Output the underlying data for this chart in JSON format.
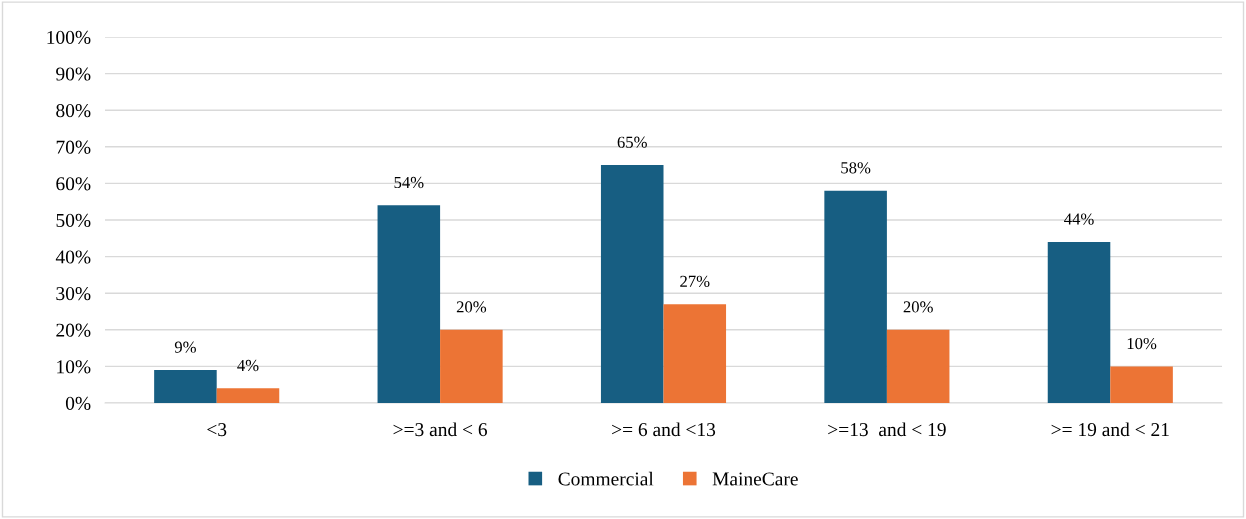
{
  "chart_data": {
    "type": "bar",
    "categories": [
      "<3",
      ">=3 and < 6",
      ">= 6 and <13",
      ">=13  and < 19",
      ">= 19 and < 21"
    ],
    "series": [
      {
        "name": "Commercial",
        "color": "#175e82",
        "values": [
          9,
          54,
          65,
          58,
          44
        ],
        "value_labels": [
          "9%",
          "54%",
          "65%",
          "58%",
          "44%"
        ]
      },
      {
        "name": "MaineCare",
        "color": "#ec7435",
        "values": [
          4,
          20,
          27,
          20,
          10
        ],
        "value_labels": [
          "4%",
          "20%",
          "27%",
          "20%",
          "10%"
        ]
      }
    ],
    "ylim": [
      0,
      100
    ],
    "yticks": [
      {
        "value": 0,
        "label": "0%"
      },
      {
        "value": 10,
        "label": "10%"
      },
      {
        "value": 20,
        "label": "20%"
      },
      {
        "value": 30,
        "label": "30%"
      },
      {
        "value": 40,
        "label": "40%"
      },
      {
        "value": 50,
        "label": "50%"
      },
      {
        "value": 60,
        "label": "60%"
      },
      {
        "value": 70,
        "label": "70%"
      },
      {
        "value": 80,
        "label": "80%"
      },
      {
        "value": 90,
        "label": "90%"
      },
      {
        "value": 100,
        "label": "100%"
      }
    ],
    "grid": "y",
    "legend": "bottom"
  }
}
